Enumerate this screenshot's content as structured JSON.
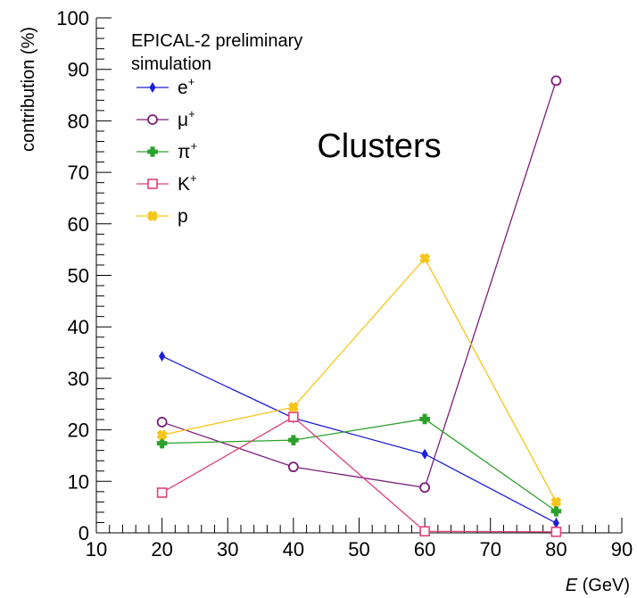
{
  "chart_data": {
    "type": "line",
    "title": "",
    "annotation": "Clusters",
    "legend_header": [
      "EPICAL-2 preliminary",
      "simulation"
    ],
    "legend_placement": "top-left",
    "xlabel_italic": "E",
    "xlabel_rest": " (GeV)",
    "ylabel": "contribution (%)",
    "xlim": [
      10,
      90
    ],
    "ylim": [
      0,
      100
    ],
    "x_ticks": [
      10,
      20,
      30,
      40,
      50,
      60,
      70,
      80,
      90
    ],
    "y_ticks": [
      0,
      10,
      20,
      30,
      40,
      50,
      60,
      70,
      80,
      90,
      100
    ],
    "grid": false,
    "x": [
      20,
      40,
      60,
      80
    ],
    "series": [
      {
        "name": "e",
        "sup": "+",
        "color": "#1f1fd6",
        "marker": "diamond",
        "values": [
          34.3,
          22.3,
          15.3,
          1.9
        ]
      },
      {
        "name": "μ",
        "sup": "+",
        "color": "#7a1f7a",
        "marker": "circle",
        "values": [
          21.5,
          12.8,
          8.8,
          87.8
        ]
      },
      {
        "name": "π",
        "sup": "+",
        "color": "#2ca02c",
        "marker": "cross",
        "values": [
          17.4,
          18.0,
          22.1,
          4.2
        ]
      },
      {
        "name": "K",
        "sup": "+",
        "color": "#e0407a",
        "marker": "square",
        "values": [
          7.8,
          22.5,
          0.3,
          0.2
        ]
      },
      {
        "name": "p",
        "sup": "",
        "color": "#f5c518",
        "marker": "xcross",
        "values": [
          19.0,
          24.4,
          53.3,
          6.0
        ]
      }
    ]
  }
}
